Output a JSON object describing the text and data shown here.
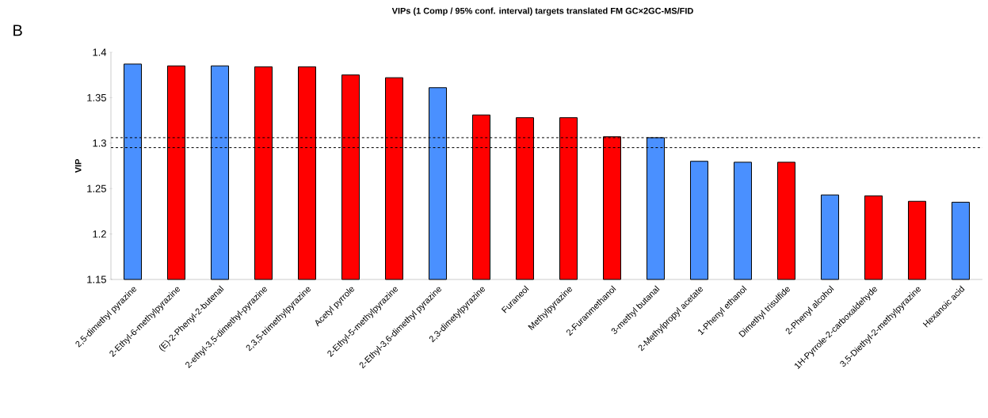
{
  "chart_data": {
    "type": "bar",
    "title": "VIPs (1 Comp / 95% conf. interval) targets translated FM GC×2GC-MS/FID",
    "ylabel": "VIP",
    "annotations": [
      "B"
    ],
    "categories": [
      "2,5-dimethyl pyrazine",
      "2-Ethyl-6-methylpyrazine",
      "(E)-2-Phenyl-2-butenal",
      "2-ethyl-3,5-dimethyl-pyrazine",
      "2,3,5-trimethylpyrazine",
      "Acetyl pyrrole",
      "2-Ethyl-5-methylpyrazine",
      "2-Ethyl-3,6-dimethyl pyrazine",
      "2,3-dimetylpyrazine",
      "Furaneol",
      "Methylpyrazine",
      "2-Furanmethanol",
      "3-methyl butanal",
      "2-Methylpropyl acetate",
      "1-Phenyl ethanol",
      "Dimethyl trisulfide",
      "2-Phenyl alcohol",
      "1H-Pyrrole-2-carboxaldehyde",
      "3,5-Diethyl-2-methylpyrazine",
      "Hexanoic acid"
    ],
    "values": [
      1.387,
      1.385,
      1.385,
      1.384,
      1.384,
      1.375,
      1.372,
      1.361,
      1.331,
      1.328,
      1.328,
      1.307,
      1.306,
      1.28,
      1.279,
      1.279,
      1.243,
      1.242,
      1.236,
      1.235
    ],
    "colors": [
      "#4a90ff",
      "#ff0000",
      "#4a90ff",
      "#ff0000",
      "#ff0000",
      "#ff0000",
      "#ff0000",
      "#4a90ff",
      "#ff0000",
      "#ff0000",
      "#ff0000",
      "#ff0000",
      "#4a90ff",
      "#4a90ff",
      "#4a90ff",
      "#ff0000",
      "#4a90ff",
      "#ff0000",
      "#ff0000",
      "#4a90ff"
    ],
    "ylim": [
      1.15,
      1.4
    ],
    "yticks": [
      1.15,
      1.2,
      1.25,
      1.3,
      1.35,
      1.4
    ],
    "ref_lines": [
      {
        "axis": "y",
        "value": 1.306,
        "color": "#000000",
        "line_style": "dashed"
      },
      {
        "axis": "y",
        "value": 1.295,
        "color": "#000000",
        "line_style": "dashed"
      }
    ],
    "grid": false
  }
}
